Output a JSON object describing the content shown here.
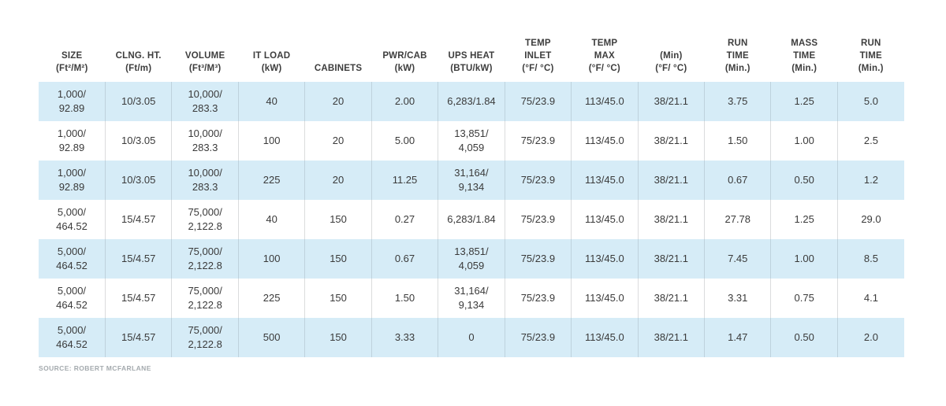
{
  "chart_data": {
    "type": "table",
    "columns": [
      {
        "id": "size",
        "header": "SIZE\n(Ft²/M²)"
      },
      {
        "id": "ceiling-height",
        "header": "CLNG. HT.\n(Ft/m)"
      },
      {
        "id": "volume",
        "header": "VOLUME\n(Ft³/M³)"
      },
      {
        "id": "it-load",
        "header": "IT LOAD\n(kW)"
      },
      {
        "id": "cabinets",
        "header": "CABINETS"
      },
      {
        "id": "pwr-cab",
        "header": "PWR/CAB\n(kW)"
      },
      {
        "id": "ups-heat",
        "header": "UPS HEAT\n(BTU/kW)"
      },
      {
        "id": "temp-inlet",
        "header": "TEMP\nINLET\n(°F/ °C)"
      },
      {
        "id": "temp-max",
        "header": "TEMP\nMAX\n(°F/ °C)"
      },
      {
        "id": "temp-min",
        "header": "(Min)\n(°F/ °C)"
      },
      {
        "id": "run-time-1",
        "header": "RUN\nTIME\n(Min.)"
      },
      {
        "id": "mass-time",
        "header": "MASS\nTIME\n(Min.)"
      },
      {
        "id": "run-time-2",
        "header": "RUN\nTIME\n(Min.)"
      }
    ],
    "rows": [
      [
        "1,000/\n92.89",
        "10/3.05",
        "10,000/\n283.3",
        "40",
        "20",
        "2.00",
        "6,283/1.84",
        "75/23.9",
        "113/45.0",
        "38/21.1",
        "3.75",
        "1.25",
        "5.0"
      ],
      [
        "1,000/\n92.89",
        "10/3.05",
        "10,000/\n283.3",
        "100",
        "20",
        "5.00",
        "13,851/\n4,059",
        "75/23.9",
        "113/45.0",
        "38/21.1",
        "1.50",
        "1.00",
        "2.5"
      ],
      [
        "1,000/\n92.89",
        "10/3.05",
        "10,000/\n283.3",
        "225",
        "20",
        "11.25",
        "31,164/\n9,134",
        "75/23.9",
        "113/45.0",
        "38/21.1",
        "0.67",
        "0.50",
        "1.2"
      ],
      [
        "5,000/\n464.52",
        "15/4.57",
        "75,000/\n2,122.8",
        "40",
        "150",
        "0.27",
        "6,283/1.84",
        "75/23.9",
        "113/45.0",
        "38/21.1",
        "27.78",
        "1.25",
        "29.0"
      ],
      [
        "5,000/\n464.52",
        "15/4.57",
        "75,000/\n2,122.8",
        "100",
        "150",
        "0.67",
        "13,851/\n4,059",
        "75/23.9",
        "113/45.0",
        "38/21.1",
        "7.45",
        "1.00",
        "8.5"
      ],
      [
        "5,000/\n464.52",
        "15/4.57",
        "75,000/\n2,122.8",
        "225",
        "150",
        "1.50",
        "31,164/\n9,134",
        "75/23.9",
        "113/45.0",
        "38/21.1",
        "3.31",
        "0.75",
        "4.1"
      ],
      [
        "5,000/\n464.52",
        "15/4.57",
        "75,000/\n2,122.8",
        "500",
        "150",
        "3.33",
        "0",
        "75/23.9",
        "113/45.0",
        "38/21.1",
        "1.47",
        "0.50",
        "2.0"
      ]
    ],
    "source": "SOURCE: ROBERT MCFARLANE",
    "layout_hints": {
      "zebra_striping": "odd rows highlighted",
      "grid": "vertical dividers only, body rows only"
    },
    "colors": {
      "row_highlight": "#d6ecf7",
      "row_plain": "#ffffff",
      "header_text": "#3d3d3d",
      "cell_text": "#3a3a3a",
      "source_text": "#a4aaae",
      "divider_blue": "#bed2dd",
      "divider_gray": "#dbdcdd"
    }
  }
}
